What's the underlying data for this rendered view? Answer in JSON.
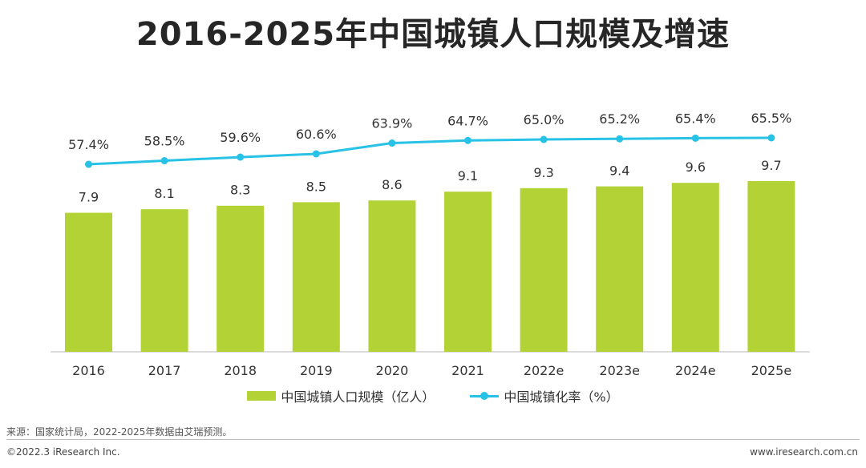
{
  "chart_data": {
    "type": "bar",
    "title": "2016-2025年中国城镇人口规模及增速",
    "categories": [
      "2016",
      "2017",
      "2018",
      "2019",
      "2020",
      "2021",
      "2022e",
      "2023e",
      "2024e",
      "2025e"
    ],
    "series": [
      {
        "name": "中国城镇人口规模（亿人）",
        "type": "bar",
        "color": "#b2d235",
        "values": [
          7.9,
          8.1,
          8.3,
          8.5,
          8.6,
          9.1,
          9.3,
          9.4,
          9.6,
          9.7
        ],
        "labels": [
          "7.9",
          "8.1",
          "8.3",
          "8.5",
          "8.6",
          "9.1",
          "9.3",
          "9.4",
          "9.6",
          "9.7"
        ]
      },
      {
        "name": "中国城镇化率（%）",
        "type": "line",
        "color": "#28c2e6",
        "values": [
          57.4,
          58.5,
          59.6,
          60.6,
          63.9,
          64.7,
          65.0,
          65.2,
          65.4,
          65.5
        ],
        "labels": [
          "57.4%",
          "58.5%",
          "59.6%",
          "60.6%",
          "63.9%",
          "64.7%",
          "65.0%",
          "65.2%",
          "65.4%",
          "65.5%"
        ]
      }
    ],
    "ylim_bar": [
      0,
      9.7
    ],
    "ylim_line": [
      0,
      65.5
    ],
    "grid": false,
    "legend": "bottom"
  },
  "source": "来源：国家统计局，2022-2025年数据由艾瑞预测。",
  "copyright": "©2022.3 iResearch Inc.",
  "website": "www.iresearch.com.cn"
}
